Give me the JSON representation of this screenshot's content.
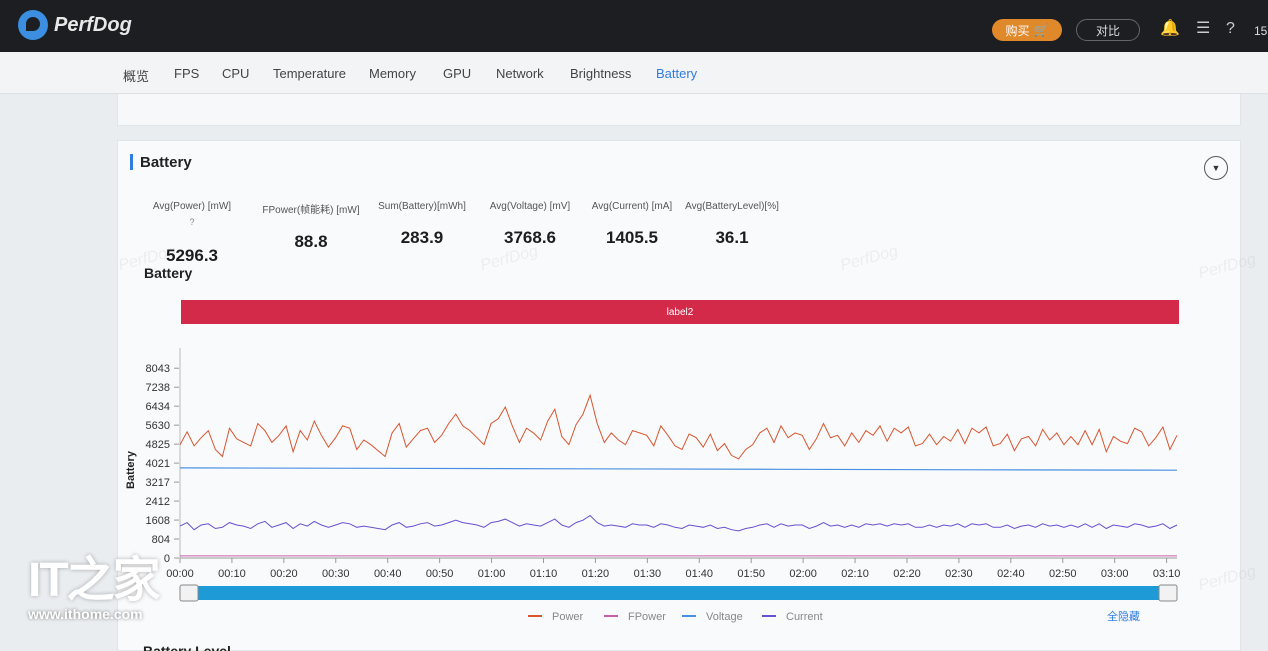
{
  "app": {
    "name": "PerfDog"
  },
  "header": {
    "buy_label": "购买",
    "compare_label": "对比",
    "user_text": "15"
  },
  "tabs": [
    {
      "label": "概览"
    },
    {
      "label": "FPS"
    },
    {
      "label": "CPU"
    },
    {
      "label": "Temperature"
    },
    {
      "label": "Memory"
    },
    {
      "label": "GPU"
    },
    {
      "label": "Network"
    },
    {
      "label": "Brightness"
    },
    {
      "label": "Battery",
      "active": true
    }
  ],
  "battery": {
    "section_title": "Battery",
    "stats": [
      {
        "label": "Avg(Power) [mW]",
        "value": "5296.3",
        "help": true
      },
      {
        "label": "FPower(帧能耗) [mW]",
        "value": "88.8"
      },
      {
        "label": "Sum(Battery)[mWh]",
        "value": "283.9"
      },
      {
        "label": "Avg(Voltage) [mV]",
        "value": "3768.6"
      },
      {
        "label": "Avg(Current) [mA]",
        "value": "1405.5"
      },
      {
        "label": "Avg(BatteryLevel)[%]",
        "value": "36.1"
      }
    ],
    "chart_title": "Battery",
    "label_bar": "label2",
    "hide_all_label": "全隐藏",
    "next_section_title": "Battery Level"
  },
  "watermark": "PerfDog",
  "ithome": {
    "site": "www.ithome.com"
  },
  "colors": {
    "power": "#d9552f",
    "fpower": "#c95fb0",
    "voltage": "#4a90e2",
    "current": "#6a4fd0",
    "accent": "#2f7de1",
    "label_bar": "#d42a4a",
    "scrollbar": "#1e9bd7"
  },
  "chart_data": {
    "type": "line",
    "ylabel": "Battery",
    "yticks": [
      0,
      804,
      1608,
      2412,
      3217,
      4021,
      4825,
      5630,
      6434,
      7238,
      8043
    ],
    "ylim": [
      0,
      8900
    ],
    "xticks": [
      "00:00",
      "00:10",
      "00:20",
      "00:30",
      "00:40",
      "00:50",
      "01:00",
      "01:10",
      "01:20",
      "01:30",
      "01:40",
      "01:50",
      "02:00",
      "02:10",
      "02:20",
      "02:30",
      "02:40",
      "02:50",
      "03:00",
      "03:10"
    ],
    "x_range_seconds": [
      0,
      192
    ],
    "series": [
      {
        "name": "Power",
        "key": "power",
        "values": [
          4800,
          5350,
          4750,
          5100,
          5400,
          4600,
          4300,
          5500,
          5050,
          4900,
          4750,
          5700,
          5400,
          4900,
          5200,
          5600,
          4500,
          5400,
          5000,
          5800,
          5200,
          4700,
          5100,
          5600,
          5500,
          4600,
          5000,
          4800,
          4550,
          4300,
          5300,
          5700,
          4700,
          5050,
          5400,
          5500,
          4900,
          5200,
          5700,
          6100,
          5600,
          5400,
          5100,
          4800,
          5700,
          5900,
          6400,
          5600,
          4900,
          5500,
          5300,
          5000,
          5800,
          6300,
          5150,
          4800,
          5650,
          6100,
          6900,
          5700,
          4900,
          5300,
          5000,
          4800,
          5400,
          5300,
          5200,
          4750,
          5600,
          5200,
          4750,
          4600,
          5250,
          5100,
          4700,
          5250,
          4550,
          4850,
          4350,
          4200,
          4600,
          4800,
          5300,
          5500,
          4900,
          5600,
          5100,
          5300,
          5200,
          4600,
          5050,
          5700,
          5100,
          5200,
          4750,
          5300,
          4900,
          5400,
          5200,
          5600,
          4950,
          5500,
          5300,
          5550,
          4750,
          4850,
          5250,
          4800,
          5150,
          4950,
          5450,
          4850,
          5500,
          5300,
          5550,
          4750,
          4850,
          5250,
          4550,
          5050,
          5150,
          4750,
          5450,
          5000,
          5300,
          4800,
          5150,
          4800,
          5400,
          4800,
          5450,
          4500,
          5150,
          4950,
          4850,
          5500,
          5350,
          4750,
          5100,
          5550,
          4600,
          5200
        ],
        "unit": "mW"
      },
      {
        "name": "FPower",
        "key": "fpower",
        "values": [
          88,
          88
        ]
      },
      {
        "name": "Voltage",
        "key": "voltage",
        "values": [
          3820,
          3800,
          3780,
          3760,
          3740,
          3720
        ]
      },
      {
        "name": "Current",
        "key": "current",
        "values": [
          1350,
          1500,
          1200,
          1400,
          1450,
          1250,
          1300,
          1500,
          1400,
          1350,
          1250,
          1450,
          1550,
          1300,
          1400,
          1500,
          1250,
          1450,
          1350,
          1550,
          1400,
          1300,
          1400,
          1500,
          1450,
          1300,
          1350,
          1300,
          1250,
          1200,
          1400,
          1500,
          1300,
          1350,
          1450,
          1500,
          1350,
          1400,
          1500,
          1600,
          1500,
          1450,
          1400,
          1300,
          1500,
          1550,
          1650,
          1500,
          1350,
          1450,
          1400,
          1350,
          1500,
          1650,
          1400,
          1300,
          1500,
          1600,
          1800,
          1500,
          1350,
          1400,
          1350,
          1300,
          1450,
          1400,
          1400,
          1300,
          1450,
          1400,
          1300,
          1250,
          1400,
          1350,
          1300,
          1400,
          1250,
          1300,
          1200,
          1150,
          1250,
          1300,
          1400,
          1450,
          1300,
          1450,
          1350,
          1400,
          1400,
          1250,
          1350,
          1500,
          1350,
          1400,
          1300,
          1400,
          1300,
          1450,
          1400,
          1450,
          1350,
          1450,
          1400,
          1450,
          1300,
          1300,
          1400,
          1300,
          1400,
          1350,
          1450,
          1300,
          1450,
          1400,
          1450,
          1300,
          1300,
          1400,
          1250,
          1350,
          1400,
          1300,
          1450,
          1350,
          1400,
          1300,
          1400,
          1300,
          1450,
          1300,
          1450,
          1250,
          1400,
          1350,
          1300,
          1450,
          1400,
          1300,
          1350,
          1450,
          1250,
          1400
        ]
      }
    ],
    "legend": [
      "Power",
      "FPower",
      "Voltage",
      "Current"
    ],
    "legend_position": "bottom",
    "grid": false
  }
}
